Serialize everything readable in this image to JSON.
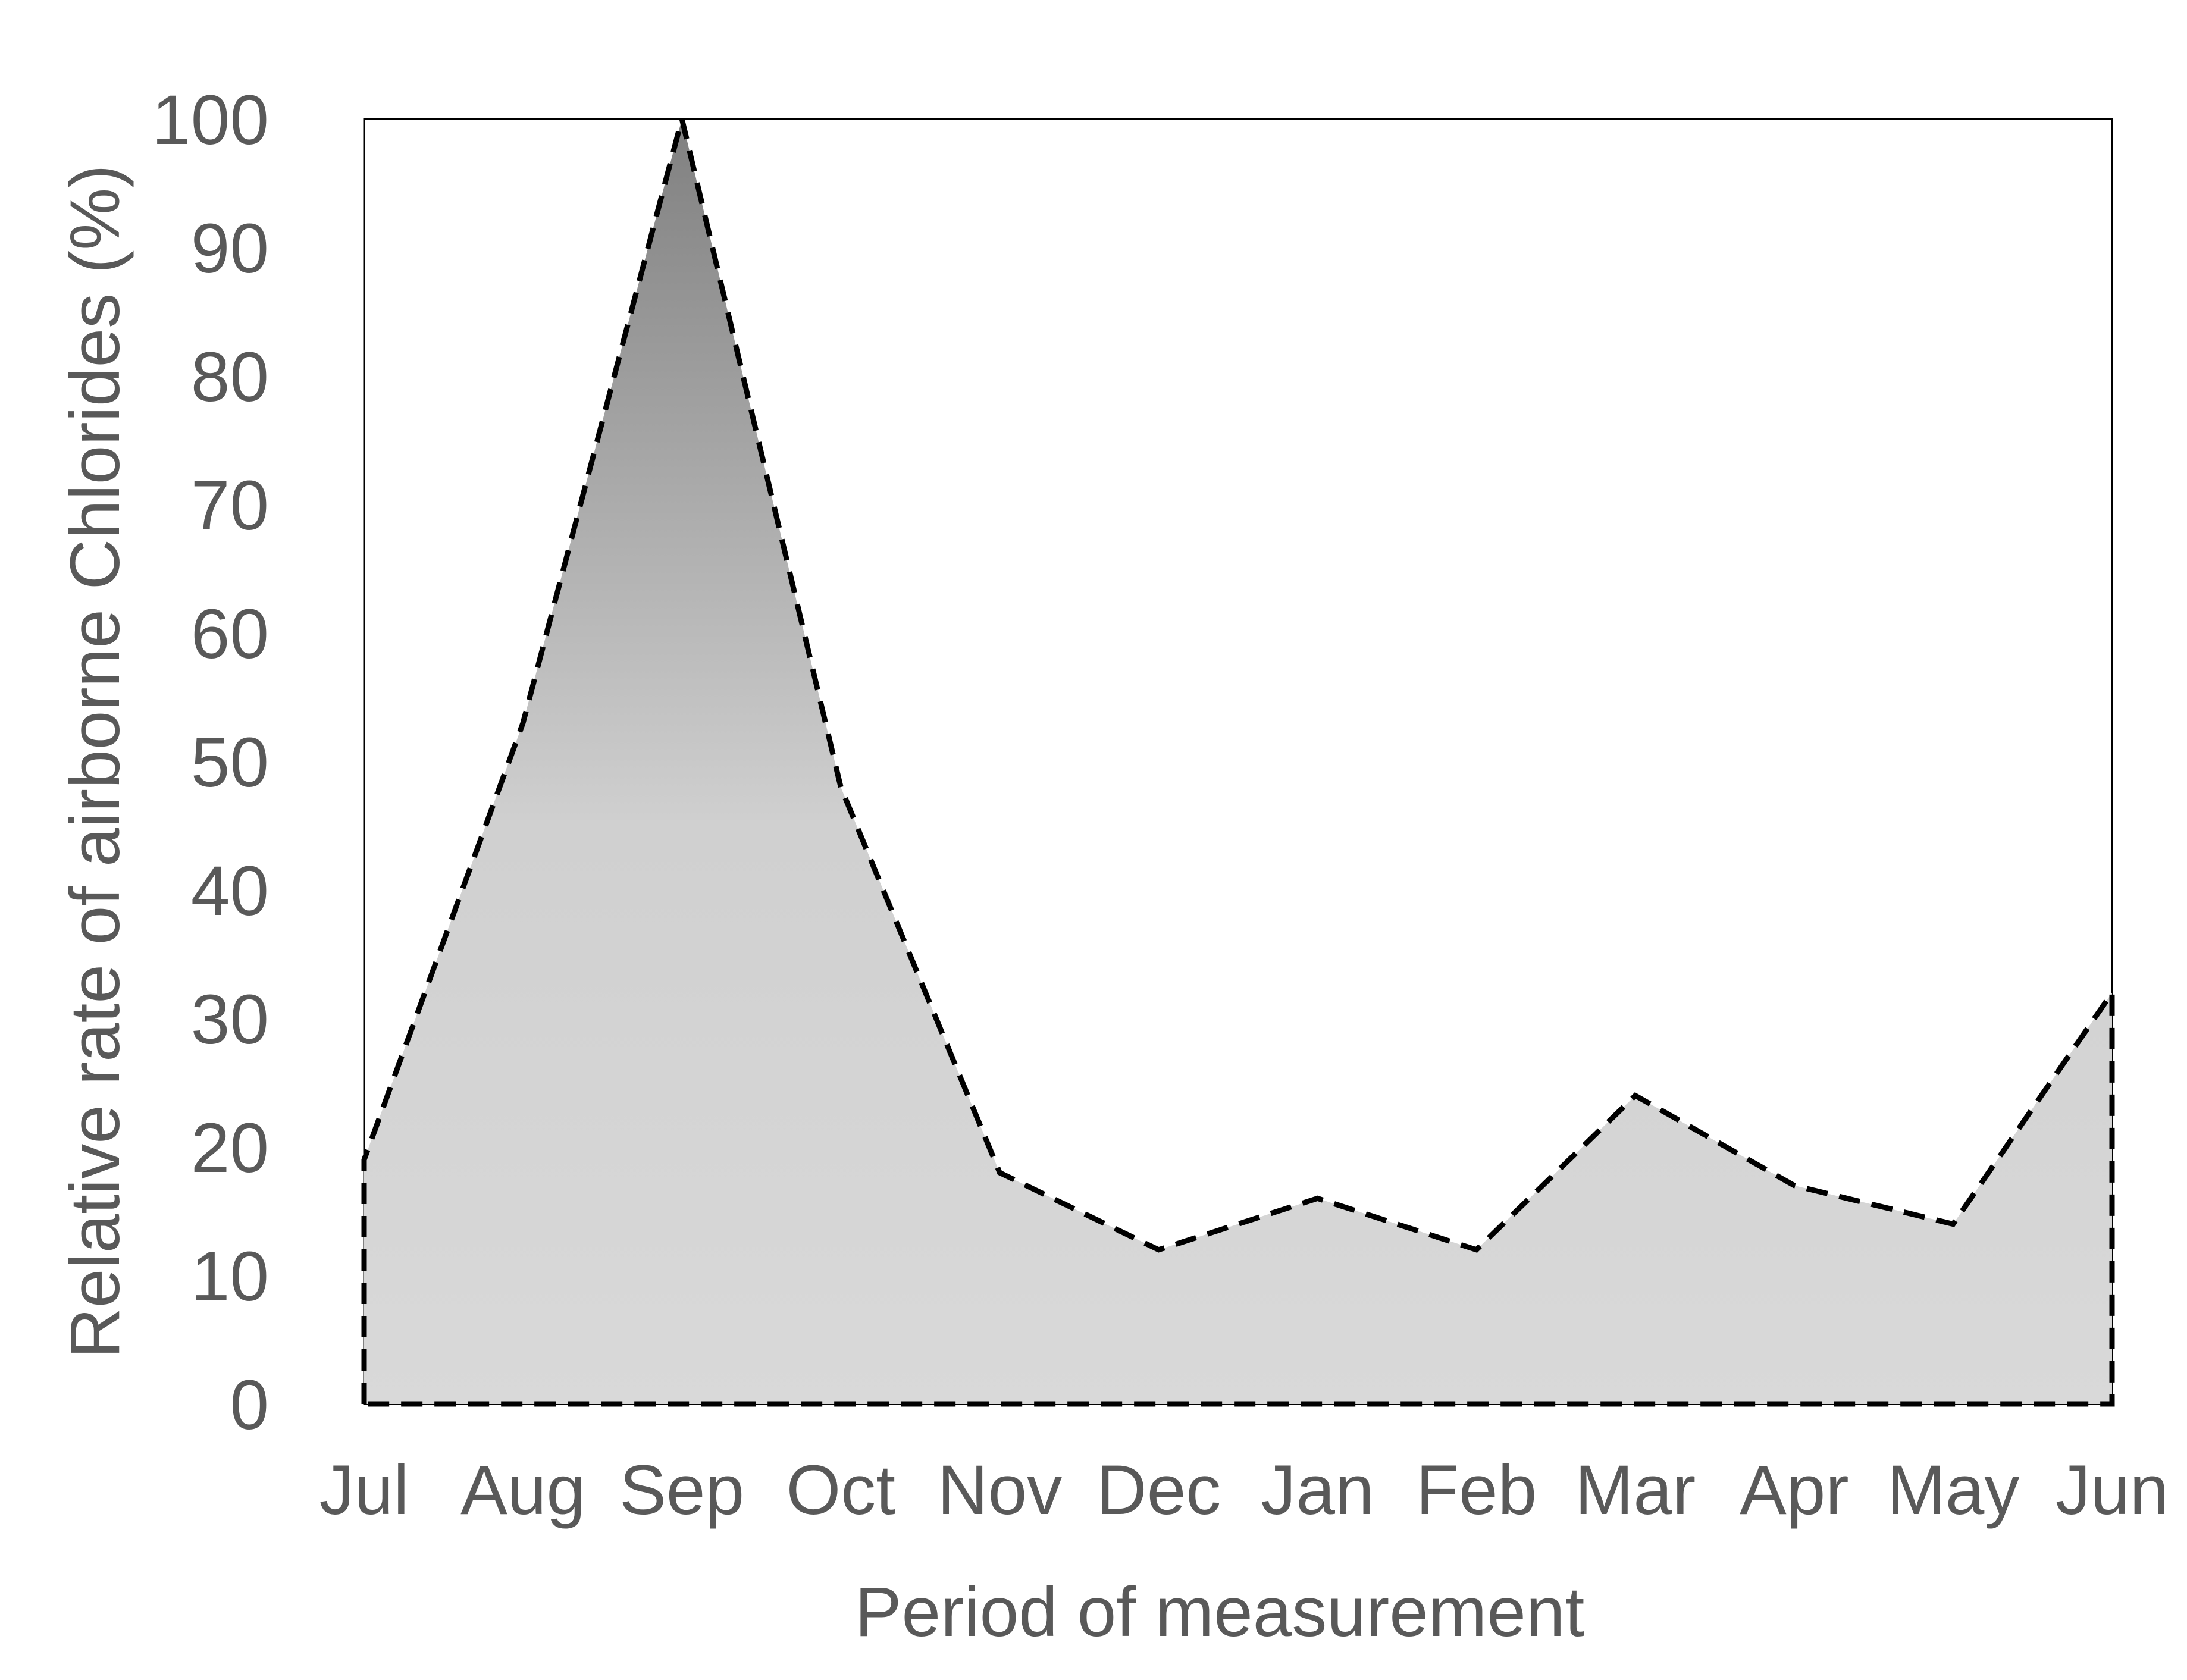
{
  "chart_data": {
    "type": "area",
    "title": "",
    "xlabel": "Period of measurement",
    "ylabel": "Relative rate of airborne Chlorides (%)",
    "categories": [
      "Jul",
      "Aug",
      "Sep",
      "Oct",
      "Nov",
      "Dec",
      "Jan",
      "Feb",
      "Mar",
      "Apr",
      "May",
      "Jun"
    ],
    "series": [
      {
        "values": [
          19,
          53,
          100,
          48,
          18,
          12,
          16,
          12,
          24,
          17,
          14,
          32
        ]
      }
    ],
    "ylim": [
      0,
      100
    ],
    "yticks": [
      "0",
      "10",
      "20",
      "30",
      "40",
      "50",
      "60",
      "70",
      "80",
      "90",
      "100"
    ],
    "grid": false,
    "legend": "none",
    "colors": {
      "fill_top": "#808080",
      "fill_bottom": "#d9d9d9",
      "outline": "#000000",
      "text": "#595959",
      "frame": "#000000"
    }
  }
}
